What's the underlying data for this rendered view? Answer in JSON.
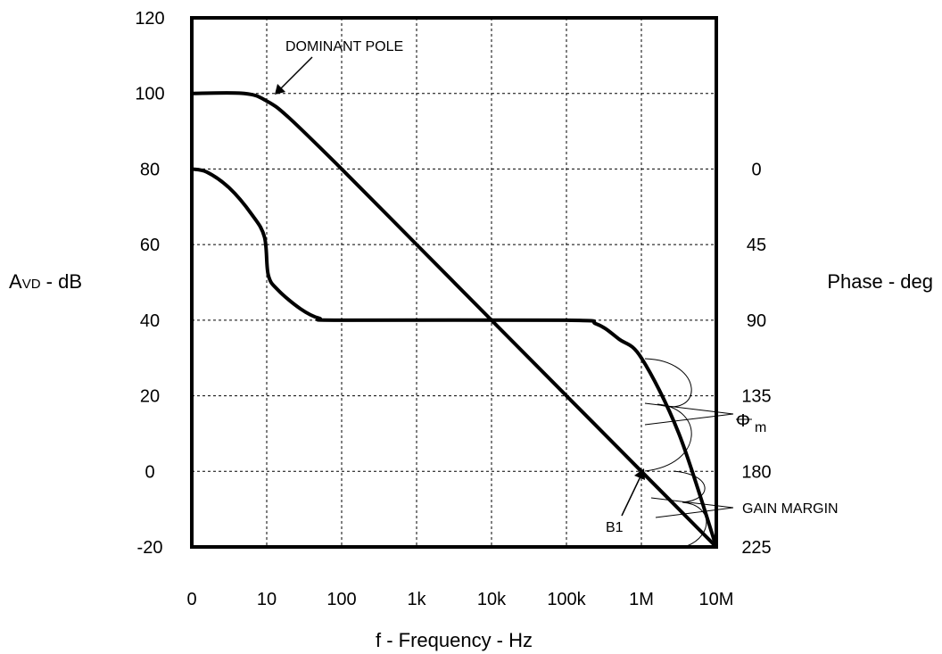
{
  "chart_data": {
    "type": "line",
    "title": "",
    "xlabel": "f - Frequency - Hz",
    "ylabel": "AVD - dB",
    "ylabel_parts": {
      "main": "A",
      "subscript": "VD",
      "rest": " - dB"
    },
    "y2label": "Phase - deg",
    "x_tick_labels": [
      "0",
      "10",
      "100",
      "1k",
      "10k",
      "100k",
      "1M",
      "10M"
    ],
    "xlim_log10": [
      0,
      7
    ],
    "ylim": [
      -20,
      120
    ],
    "y_ticks": [
      120,
      100,
      80,
      60,
      40,
      20,
      0,
      -20
    ],
    "y2_ticks": [
      "0",
      "45",
      "90",
      "135",
      "180",
      "225"
    ],
    "y2_map": {
      "0": 80,
      "45": 60,
      "90": 40,
      "135": 20,
      "180": 0,
      "225": -20
    },
    "grid": true,
    "series": [
      {
        "role": "open-loop gain",
        "points": [
          [
            0,
            100
          ],
          [
            0.7,
            100
          ],
          [
            1.0,
            98
          ],
          [
            1.3,
            93.5
          ],
          [
            2,
            80
          ],
          [
            3,
            60
          ],
          [
            4,
            40
          ],
          [
            5,
            20
          ],
          [
            6,
            0
          ],
          [
            6.5,
            -10
          ],
          [
            7,
            -20
          ]
        ]
      },
      {
        "role": "phase",
        "points": [
          [
            0,
            80
          ],
          [
            0.2,
            79.2
          ],
          [
            0.5,
            75
          ],
          [
            0.8,
            68
          ],
          [
            0.97,
            62
          ],
          [
            1.02,
            52
          ],
          [
            1.15,
            48
          ],
          [
            1.45,
            43
          ],
          [
            1.7,
            40.5
          ],
          [
            2,
            40
          ],
          [
            5,
            40
          ],
          [
            5.4,
            39
          ],
          [
            5.7,
            35
          ],
          [
            6,
            30
          ],
          [
            6.5,
            10
          ],
          [
            7,
            -20
          ]
        ]
      }
    ],
    "annotations": {
      "dominant_pole": "DOMINANT POLE",
      "b1": "B1",
      "phase_margin_symbol": "Φ",
      "phase_margin_sub": "m",
      "gain_margin": "GAIN MARGIN"
    }
  }
}
